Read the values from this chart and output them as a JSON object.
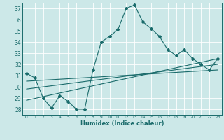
{
  "xlabel": "Humidex (Indice chaleur)",
  "bg_color": "#cce8e8",
  "line_color": "#1a6b6b",
  "grid_color": "#ffffff",
  "xlim": [
    -0.5,
    23.5
  ],
  "ylim": [
    27.5,
    37.5
  ],
  "yticks": [
    28,
    29,
    30,
    31,
    32,
    33,
    34,
    35,
    36,
    37
  ],
  "xticks": [
    0,
    1,
    2,
    3,
    4,
    5,
    6,
    7,
    8,
    9,
    10,
    11,
    12,
    13,
    14,
    15,
    16,
    17,
    18,
    19,
    20,
    21,
    22,
    23
  ],
  "series1_x": [
    0,
    1,
    2,
    3,
    4,
    5,
    6,
    7,
    8,
    9,
    10,
    11,
    12,
    13,
    14,
    15,
    16,
    17,
    18,
    19,
    20,
    21,
    22,
    23
  ],
  "series1_y": [
    31.2,
    30.8,
    29.0,
    28.1,
    29.2,
    28.7,
    28.0,
    28.0,
    31.5,
    34.0,
    34.5,
    35.1,
    37.0,
    37.3,
    35.8,
    35.2,
    34.5,
    33.3,
    32.8,
    33.3,
    32.5,
    32.0,
    31.5,
    32.5
  ],
  "series2_x": [
    0,
    23
  ],
  "series2_y": [
    28.8,
    32.5
  ],
  "series3_x": [
    0,
    23
  ],
  "series3_y": [
    29.8,
    32.0
  ],
  "series4_x": [
    0,
    23
  ],
  "series4_y": [
    30.5,
    31.5
  ]
}
